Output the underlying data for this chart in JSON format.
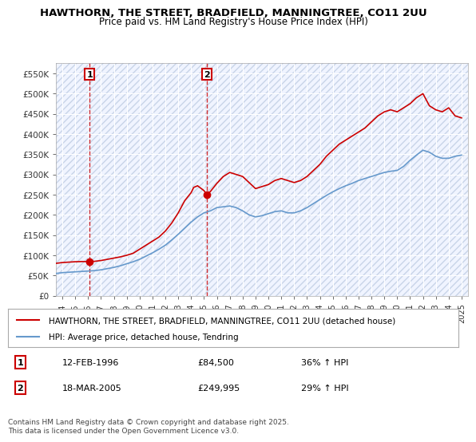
{
  "title": "HAWTHORN, THE STREET, BRADFIELD, MANNINGTREE, CO11 2UU",
  "subtitle": "Price paid vs. HM Land Registry's House Price Index (HPI)",
  "legend_line1": "HAWTHORN, THE STREET, BRADFIELD, MANNINGTREE, CO11 2UU (detached house)",
  "legend_line2": "HPI: Average price, detached house, Tendring",
  "sale1_label": "1",
  "sale1_date": "12-FEB-1996",
  "sale1_price": "£84,500",
  "sale1_hpi": "36% ↑ HPI",
  "sale2_label": "2",
  "sale2_date": "18-MAR-2005",
  "sale2_price": "£249,995",
  "sale2_hpi": "29% ↑ HPI",
  "footer": "Contains HM Land Registry data © Crown copyright and database right 2025.\nThis data is licensed under the Open Government Licence v3.0.",
  "red_color": "#cc0000",
  "blue_color": "#6699cc",
  "background_color": "#f0f4ff",
  "hatch_color": "#c8d0e0",
  "ylim": [
    0,
    575000
  ],
  "yticks": [
    0,
    50000,
    100000,
    150000,
    200000,
    250000,
    300000,
    350000,
    400000,
    450000,
    500000,
    550000
  ],
  "ytick_labels": [
    "£0",
    "£50K",
    "£100K",
    "£150K",
    "£200K",
    "£250K",
    "£300K",
    "£350K",
    "£400K",
    "£450K",
    "£500K",
    "£550K"
  ],
  "xlim_start": 1993.5,
  "xlim_end": 2025.5,
  "xticks": [
    1994,
    1995,
    1996,
    1997,
    1998,
    1999,
    2000,
    2001,
    2002,
    2003,
    2004,
    2005,
    2006,
    2007,
    2008,
    2009,
    2010,
    2011,
    2012,
    2013,
    2014,
    2015,
    2016,
    2017,
    2018,
    2019,
    2020,
    2021,
    2022,
    2023,
    2024,
    2025
  ],
  "sale1_x": 1996.12,
  "sale1_y": 84500,
  "sale2_x": 2005.21,
  "sale2_y": 249995,
  "red_line_x": [
    1993.5,
    1994.0,
    1994.5,
    1995.0,
    1995.5,
    1996.0,
    1996.2,
    1996.5,
    1997.0,
    1997.5,
    1998.0,
    1998.5,
    1999.0,
    1999.5,
    2000.0,
    2000.5,
    2001.0,
    2001.5,
    2002.0,
    2002.5,
    2003.0,
    2003.5,
    2004.0,
    2004.2,
    2004.5,
    2005.0,
    2005.21,
    2005.5,
    2006.0,
    2006.5,
    2007.0,
    2007.5,
    2008.0,
    2008.5,
    2009.0,
    2009.5,
    2010.0,
    2010.5,
    2011.0,
    2011.5,
    2012.0,
    2012.5,
    2013.0,
    2013.5,
    2014.0,
    2014.5,
    2015.0,
    2015.5,
    2016.0,
    2016.5,
    2017.0,
    2017.5,
    2018.0,
    2018.5,
    2019.0,
    2019.5,
    2020.0,
    2020.5,
    2021.0,
    2021.5,
    2022.0,
    2022.5,
    2023.0,
    2023.5,
    2024.0,
    2024.5,
    2025.0
  ],
  "red_line_y": [
    80000,
    82000,
    83000,
    84000,
    84500,
    84500,
    84500,
    85000,
    87000,
    90000,
    93000,
    96000,
    100000,
    105000,
    115000,
    125000,
    135000,
    145000,
    160000,
    180000,
    205000,
    235000,
    255000,
    268000,
    272000,
    260000,
    249995,
    258000,
    278000,
    295000,
    305000,
    300000,
    295000,
    280000,
    265000,
    270000,
    275000,
    285000,
    290000,
    285000,
    280000,
    285000,
    295000,
    310000,
    325000,
    345000,
    360000,
    375000,
    385000,
    395000,
    405000,
    415000,
    430000,
    445000,
    455000,
    460000,
    455000,
    465000,
    475000,
    490000,
    500000,
    470000,
    460000,
    455000,
    465000,
    445000,
    440000
  ],
  "blue_line_x": [
    1993.5,
    1994.0,
    1994.5,
    1995.0,
    1995.5,
    1996.0,
    1996.5,
    1997.0,
    1997.5,
    1998.0,
    1998.5,
    1999.0,
    1999.5,
    2000.0,
    2000.5,
    2001.0,
    2001.5,
    2002.0,
    2002.5,
    2003.0,
    2003.5,
    2004.0,
    2004.5,
    2005.0,
    2005.5,
    2006.0,
    2006.5,
    2007.0,
    2007.5,
    2008.0,
    2008.5,
    2009.0,
    2009.5,
    2010.0,
    2010.5,
    2011.0,
    2011.5,
    2012.0,
    2012.5,
    2013.0,
    2013.5,
    2014.0,
    2014.5,
    2015.0,
    2015.5,
    2016.0,
    2016.5,
    2017.0,
    2017.5,
    2018.0,
    2018.5,
    2019.0,
    2019.5,
    2020.0,
    2020.5,
    2021.0,
    2021.5,
    2022.0,
    2022.5,
    2023.0,
    2023.5,
    2024.0,
    2024.5,
    2025.0
  ],
  "blue_line_y": [
    55000,
    57000,
    58000,
    59000,
    60000,
    61000,
    62000,
    64000,
    67000,
    70000,
    74000,
    79000,
    84000,
    90000,
    98000,
    106000,
    115000,
    125000,
    138000,
    152000,
    167000,
    182000,
    195000,
    205000,
    210000,
    218000,
    220000,
    222000,
    218000,
    210000,
    200000,
    195000,
    198000,
    203000,
    208000,
    210000,
    205000,
    205000,
    210000,
    218000,
    228000,
    238000,
    248000,
    257000,
    265000,
    272000,
    278000,
    285000,
    290000,
    295000,
    300000,
    305000,
    308000,
    310000,
    320000,
    335000,
    348000,
    360000,
    355000,
    345000,
    340000,
    340000,
    345000,
    348000
  ]
}
